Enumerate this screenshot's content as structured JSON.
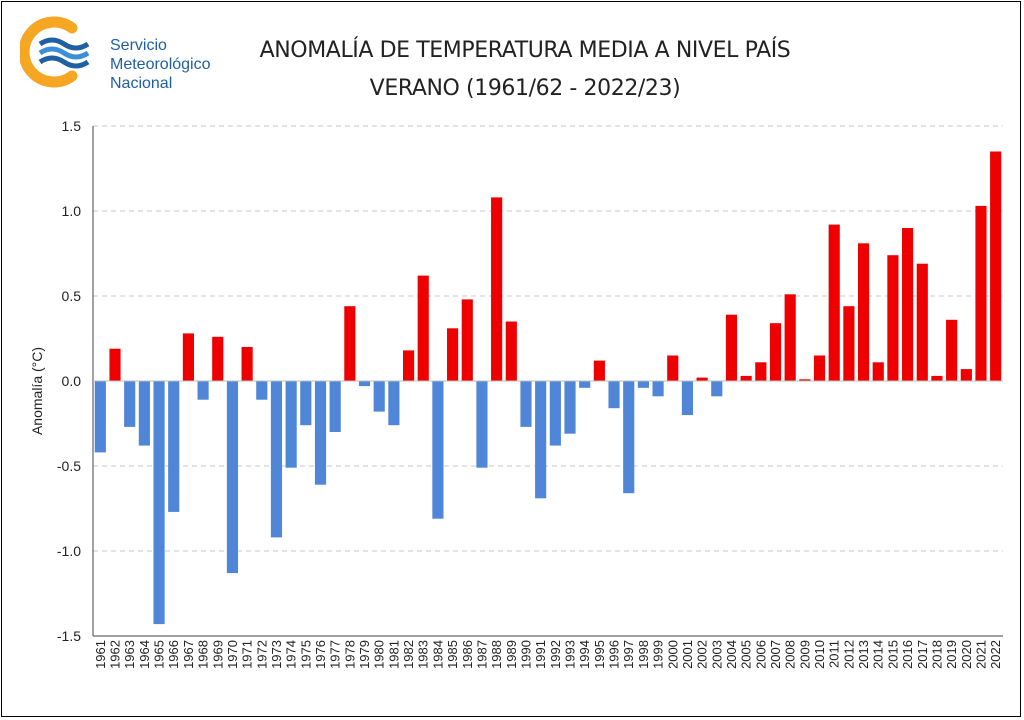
{
  "header": {
    "logo_lines": [
      "Servicio",
      "Meteorológico",
      "Nacional"
    ],
    "title": "ANOMALÍA DE TEMPERATURA MEDIA A NIVEL PAÍS",
    "subtitle": "VERANO (1961/62 - 2022/23)"
  },
  "colors": {
    "positive": "#ee0000",
    "negative": "#4f86d8",
    "logo_blue": "#1f5fa3",
    "logo_orange": "#f5a623"
  },
  "chart_data": {
    "type": "bar",
    "title": "ANOMALÍA DE TEMPERATURA MEDIA A NIVEL PAÍS",
    "subtitle": "VERANO (1961/62 - 2022/23)",
    "xlabel": "",
    "ylabel": "Anomalía (°C)",
    "ylim": [
      -1.5,
      1.5
    ],
    "yticks": [
      "1.5",
      "1.0",
      "0.5",
      "0.0",
      "-0.5",
      "-1.0",
      "-1.5"
    ],
    "grid": "horizontal dashed",
    "categories": [
      "1961",
      "1962",
      "1963",
      "1964",
      "1965",
      "1966",
      "1967",
      "1968",
      "1969",
      "1970",
      "1971",
      "1972",
      "1973",
      "1974",
      "1975",
      "1976",
      "1977",
      "1978",
      "1979",
      "1980",
      "1981",
      "1982",
      "1983",
      "1984",
      "1985",
      "1986",
      "1987",
      "1988",
      "1989",
      "1990",
      "1991",
      "1992",
      "1993",
      "1994",
      "1995",
      "1996",
      "1997",
      "1998",
      "1999",
      "2000",
      "2001",
      "2002",
      "2003",
      "2004",
      "2005",
      "2006",
      "2007",
      "2008",
      "2009",
      "2010",
      "2011",
      "2012",
      "2013",
      "2014",
      "2015",
      "2016",
      "2017",
      "2018",
      "2019",
      "2020",
      "2021",
      "2022"
    ],
    "values": [
      -0.42,
      0.19,
      -0.27,
      -0.38,
      -1.43,
      -0.77,
      0.28,
      -0.11,
      0.26,
      -1.13,
      0.2,
      -0.11,
      -0.92,
      -0.51,
      -0.26,
      -0.61,
      -0.3,
      0.44,
      -0.03,
      -0.18,
      -0.26,
      0.18,
      0.62,
      -0.81,
      0.31,
      0.48,
      -0.51,
      1.08,
      0.35,
      -0.27,
      -0.69,
      -0.38,
      -0.31,
      -0.04,
      0.12,
      -0.16,
      -0.66,
      -0.04,
      -0.09,
      0.15,
      -0.2,
      0.02,
      -0.09,
      0.39,
      0.03,
      0.11,
      0.34,
      0.51,
      0.01,
      0.15,
      0.92,
      0.44,
      0.81,
      0.11,
      0.74,
      0.9,
      0.69,
      0.03,
      0.36,
      0.07,
      1.03,
      1.35
    ]
  }
}
